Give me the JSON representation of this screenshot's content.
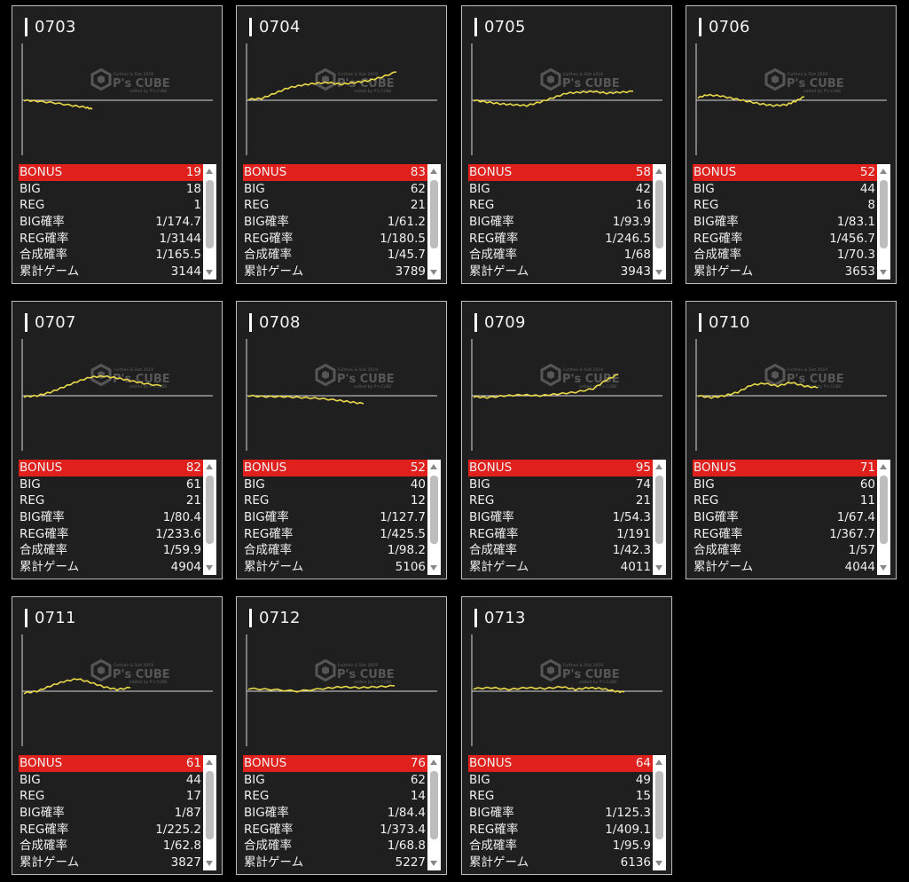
{
  "stat_labels": {
    "bonus": "BONUS",
    "big": "BIG",
    "reg": "REG",
    "big_rate": "BIG確率",
    "reg_rate": "REG確率",
    "combined_rate": "合成確率",
    "total_games": "累計ゲーム"
  },
  "watermark": {
    "top": "Furtheo & Slot 2019",
    "main": "P's CUBE",
    "sub": "edited by P's CUBE"
  },
  "colors": {
    "accent_red": "#e0201c",
    "graph_line": "#e8d84a",
    "card_bg": "#1f1f1f"
  },
  "machines": [
    {
      "id": "0703",
      "bonus": "19",
      "big": "18",
      "reg": "1",
      "big_rate": "1/174.7",
      "reg_rate": "1/3144",
      "combined_rate": "1/165.5",
      "total_games": "3144"
    },
    {
      "id": "0704",
      "bonus": "83",
      "big": "62",
      "reg": "21",
      "big_rate": "1/61.2",
      "reg_rate": "1/180.5",
      "combined_rate": "1/45.7",
      "total_games": "3789"
    },
    {
      "id": "0705",
      "bonus": "58",
      "big": "42",
      "reg": "16",
      "big_rate": "1/93.9",
      "reg_rate": "1/246.5",
      "combined_rate": "1/68",
      "total_games": "3943"
    },
    {
      "id": "0706",
      "bonus": "52",
      "big": "44",
      "reg": "8",
      "big_rate": "1/83.1",
      "reg_rate": "1/456.7",
      "combined_rate": "1/70.3",
      "total_games": "3653"
    },
    {
      "id": "0707",
      "bonus": "82",
      "big": "61",
      "reg": "21",
      "big_rate": "1/80.4",
      "reg_rate": "1/233.6",
      "combined_rate": "1/59.9",
      "total_games": "4904"
    },
    {
      "id": "0708",
      "bonus": "52",
      "big": "40",
      "reg": "12",
      "big_rate": "1/127.7",
      "reg_rate": "1/425.5",
      "combined_rate": "1/98.2",
      "total_games": "5106"
    },
    {
      "id": "0709",
      "bonus": "95",
      "big": "74",
      "reg": "21",
      "big_rate": "1/54.3",
      "reg_rate": "1/191",
      "combined_rate": "1/42.3",
      "total_games": "4011"
    },
    {
      "id": "0710",
      "bonus": "71",
      "big": "60",
      "reg": "11",
      "big_rate": "1/67.4",
      "reg_rate": "1/367.7",
      "combined_rate": "1/57",
      "total_games": "4044"
    },
    {
      "id": "0711",
      "bonus": "61",
      "big": "44",
      "reg": "17",
      "big_rate": "1/87",
      "reg_rate": "1/225.2",
      "combined_rate": "1/62.8",
      "total_games": "3827"
    },
    {
      "id": "0712",
      "bonus": "76",
      "big": "62",
      "reg": "14",
      "big_rate": "1/84.4",
      "reg_rate": "1/373.4",
      "combined_rate": "1/68.8",
      "total_games": "5227"
    },
    {
      "id": "0713",
      "bonus": "64",
      "big": "49",
      "reg": "15",
      "big_rate": "1/125.3",
      "reg_rate": "1/409.1",
      "combined_rate": "1/95.9",
      "total_games": "6136"
    }
  ]
}
